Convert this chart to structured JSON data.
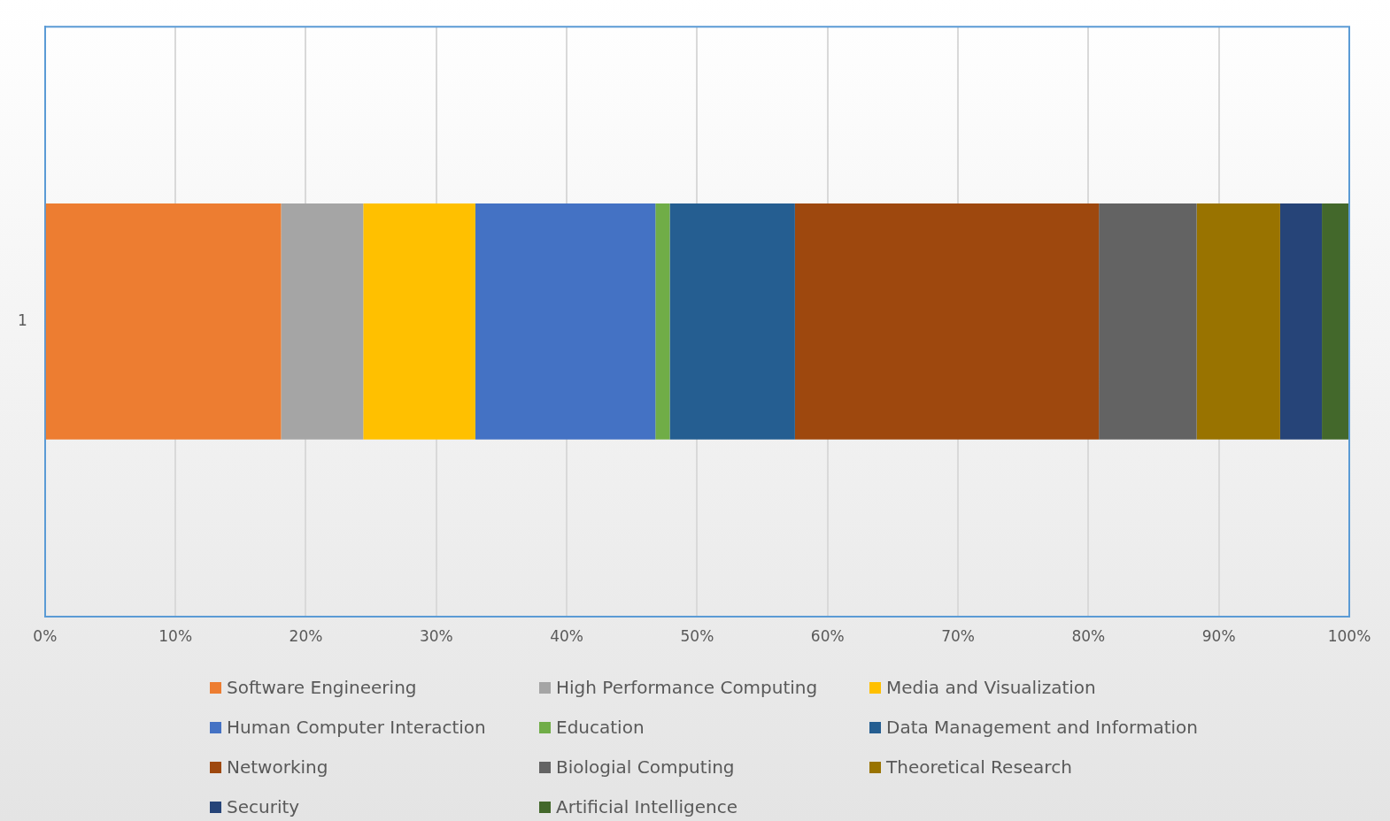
{
  "chart_data": {
    "type": "bar",
    "orientation": "horizontal",
    "stacked": true,
    "categories": [
      "1"
    ],
    "series": [
      {
        "name": "Software Engineering",
        "color": "#ed7d31",
        "values": [
          18.1
        ]
      },
      {
        "name": "High Performance Computing",
        "color": "#a5a5a5",
        "values": [
          6.3
        ]
      },
      {
        "name": "Media and Visualization",
        "color": "#ffc000",
        "values": [
          8.6
        ]
      },
      {
        "name": "Human Computer Interaction",
        "color": "#4472c4",
        "values": [
          13.8
        ]
      },
      {
        "name": "Education",
        "color": "#70ad47",
        "values": [
          1.1
        ]
      },
      {
        "name": "Data Management and Information",
        "color": "#255e91",
        "values": [
          9.6
        ]
      },
      {
        "name": "Networking",
        "color": "#9e480e",
        "values": [
          23.3
        ]
      },
      {
        "name": "Biologial Computing",
        "color": "#636363",
        "values": [
          7.5
        ]
      },
      {
        "name": "Theoretical Research",
        "color": "#997300",
        "values": [
          6.4
        ]
      },
      {
        "name": "Security",
        "color": "#264478",
        "values": [
          3.2
        ]
      },
      {
        "name": "Artificial Intelligence",
        "color": "#43682b",
        "values": [
          2.1
        ]
      }
    ],
    "xlim": [
      0,
      100
    ],
    "xticks": [
      {
        "value": 0,
        "label": "0%"
      },
      {
        "value": 10,
        "label": "10%"
      },
      {
        "value": 20,
        "label": "20%"
      },
      {
        "value": 30,
        "label": "30%"
      },
      {
        "value": 40,
        "label": "40%"
      },
      {
        "value": 50,
        "label": "50%"
      },
      {
        "value": 60,
        "label": "60%"
      },
      {
        "value": 70,
        "label": "70%"
      },
      {
        "value": 80,
        "label": "80%"
      },
      {
        "value": 90,
        "label": "90%"
      },
      {
        "value": 100,
        "label": "100%"
      }
    ],
    "grid": "x",
    "legend": "bottom"
  }
}
